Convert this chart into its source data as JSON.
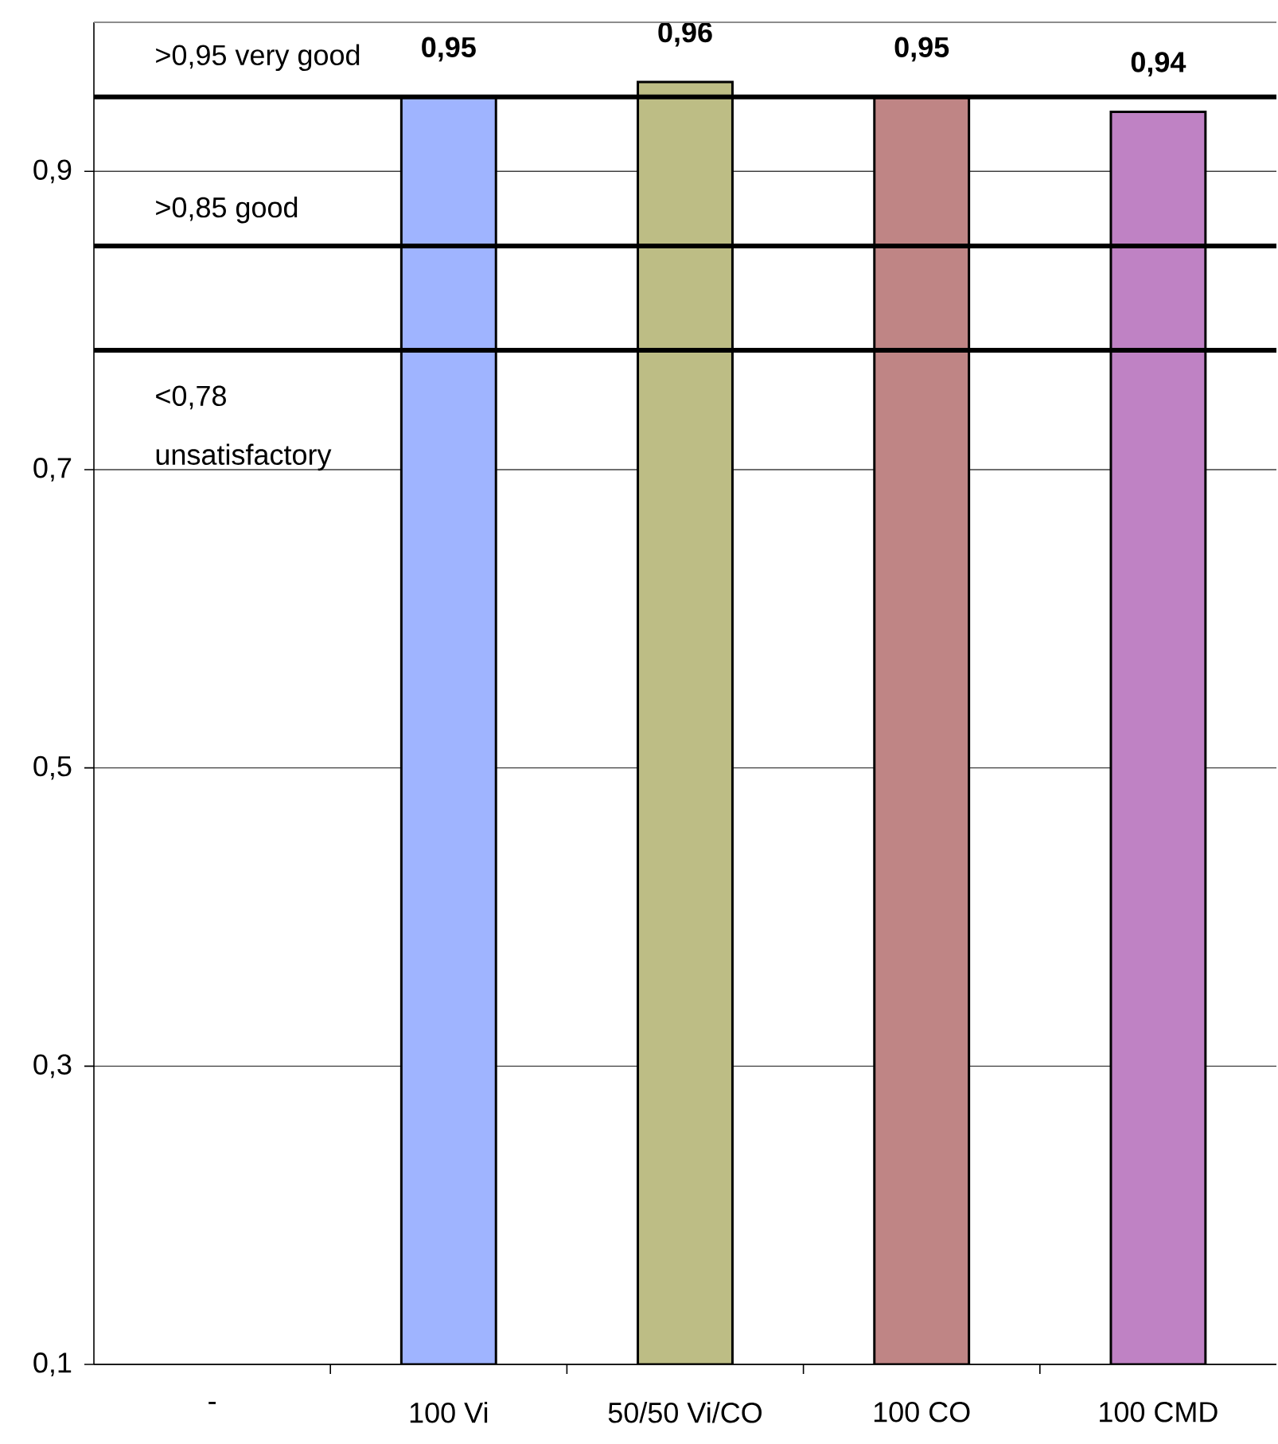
{
  "chart_data": {
    "type": "bar",
    "categories": [
      "-",
      "100 Vi",
      "50/50 Vi/CO",
      "100 CO",
      "100 CMD"
    ],
    "values": [
      null,
      0.95,
      0.96,
      0.95,
      0.94
    ],
    "colors": [
      null,
      "#9fb4ff",
      "#bdbd85",
      "#bf8585",
      "#bf82c4"
    ],
    "value_labels": [
      null,
      "0,95",
      "0,96",
      "0,95",
      "0,94"
    ],
    "ylim": [
      0.1,
      1.0
    ],
    "yticks": [
      {
        "value": 0.1,
        "label": "0,1"
      },
      {
        "value": 0.3,
        "label": "0,3"
      },
      {
        "value": 0.5,
        "label": "0,5"
      },
      {
        "value": 0.7,
        "label": "0,7"
      },
      {
        "value": 0.9,
        "label": "0,9"
      }
    ],
    "grid": "y",
    "ref_lines": [
      {
        "axis": "y",
        "value": 0.95,
        "label": ">0,95 very good"
      },
      {
        "axis": "y",
        "value": 0.85,
        "label": ">0,85 good"
      },
      {
        "axis": "y",
        "value": 0.78,
        "label": "<0,78 unsatisfactory"
      }
    ]
  }
}
